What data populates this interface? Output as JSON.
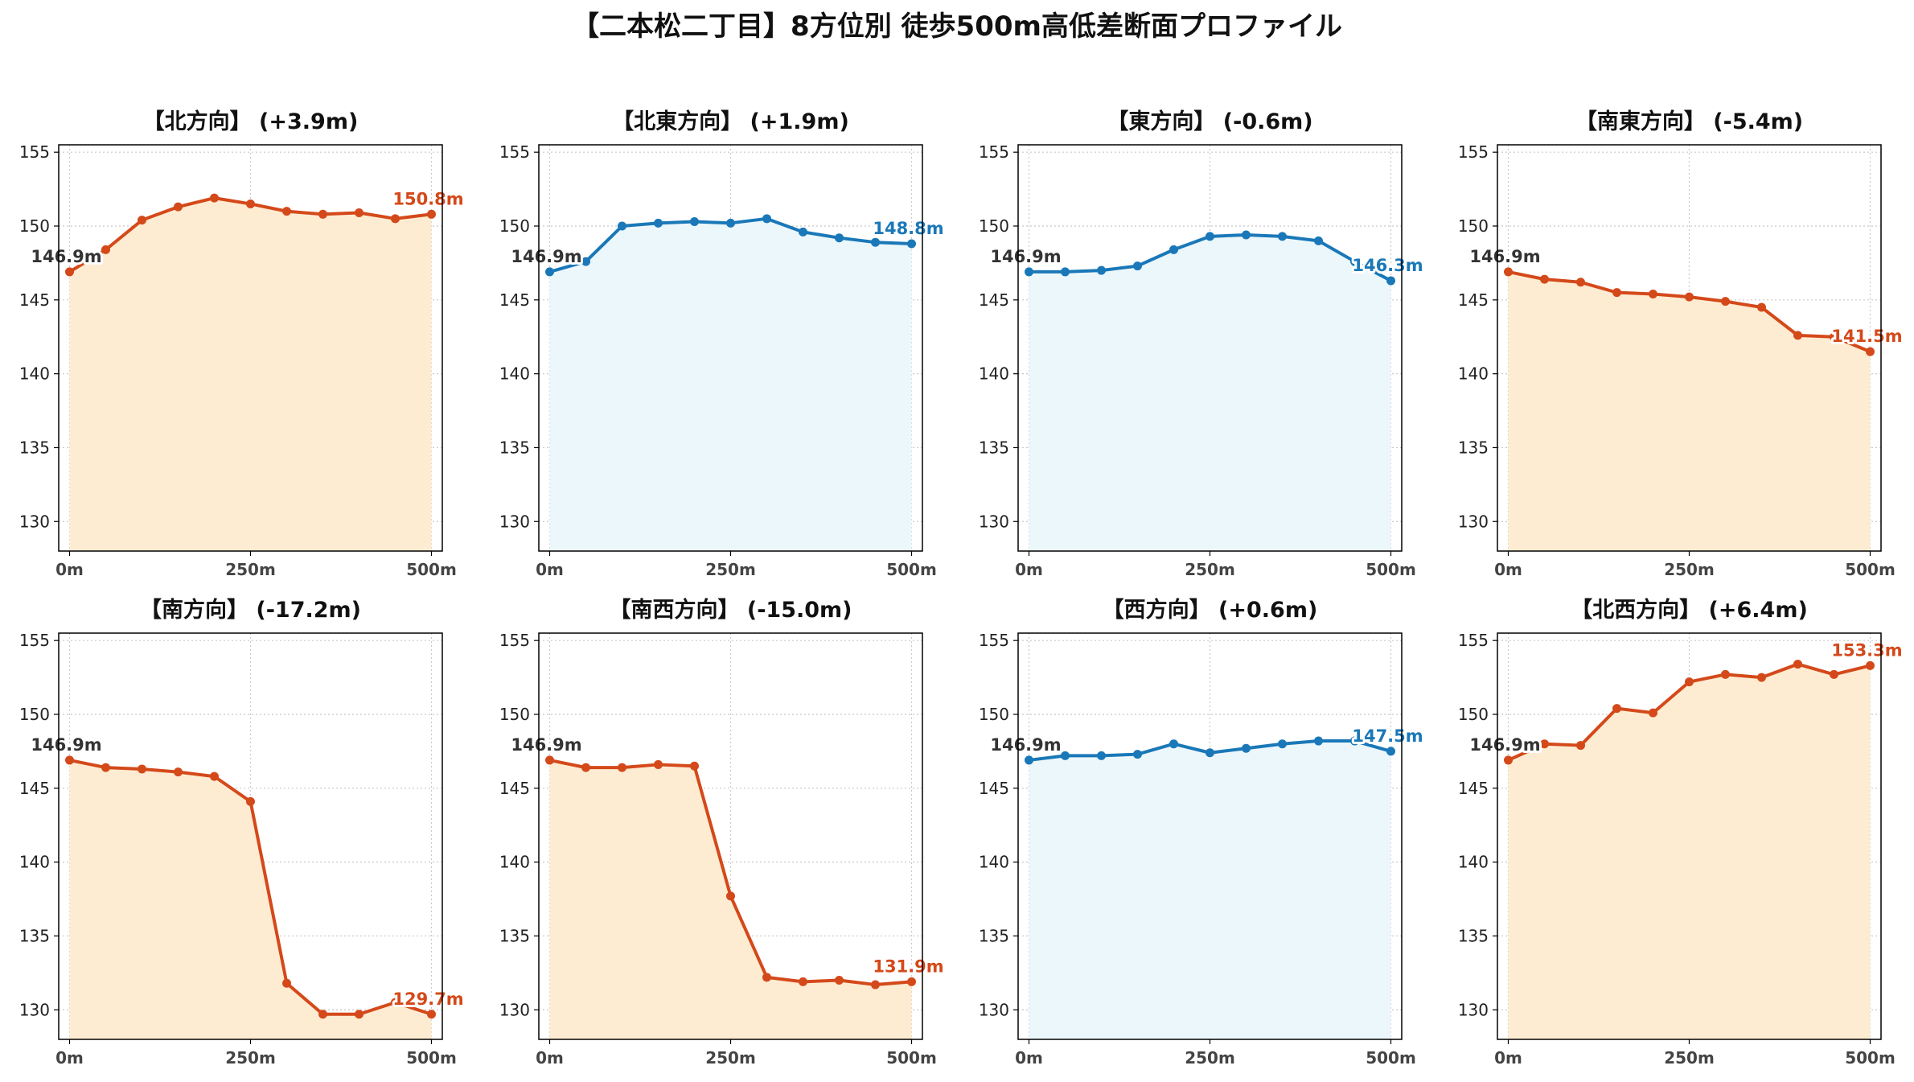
{
  "title": "【二本松二丁目】8方位別 徒歩500m高低差断面プロファイル",
  "colors": {
    "up_line": "#d4491a",
    "up_fill": "#feecd2",
    "flat_line": "#1a78b8",
    "flat_fill": "#ecf7fc"
  },
  "chart_data": [
    {
      "type": "area",
      "title": "【北方向】 (+3.9m)",
      "style": "up",
      "x": [
        0,
        50,
        100,
        150,
        200,
        250,
        300,
        350,
        400,
        450,
        500
      ],
      "values": [
        146.9,
        148.4,
        150.4,
        151.3,
        151.9,
        151.5,
        151.0,
        150.8,
        150.9,
        150.5,
        150.8
      ],
      "start_label": "146.9m",
      "end_label": "150.8m",
      "xticks": [
        0,
        250,
        500
      ],
      "xtick_labels": [
        "0m",
        "250m",
        "500m"
      ],
      "yticks": [
        130,
        135,
        140,
        145,
        150,
        155
      ],
      "ylim": [
        128,
        155.5
      ],
      "xlim": [
        -15,
        515
      ],
      "grid": true
    },
    {
      "type": "area",
      "title": "【北東方向】 (+1.9m)",
      "style": "flat",
      "x": [
        0,
        50,
        100,
        150,
        200,
        250,
        300,
        350,
        400,
        450,
        500
      ],
      "values": [
        146.9,
        147.6,
        150.0,
        150.2,
        150.3,
        150.2,
        150.5,
        149.6,
        149.2,
        148.9,
        148.8
      ],
      "start_label": "146.9m",
      "end_label": "148.8m",
      "xticks": [
        0,
        250,
        500
      ],
      "xtick_labels": [
        "0m",
        "250m",
        "500m"
      ],
      "yticks": [
        130,
        135,
        140,
        145,
        150,
        155
      ],
      "ylim": [
        128,
        155.5
      ],
      "xlim": [
        -15,
        515
      ],
      "grid": true
    },
    {
      "type": "area",
      "title": "【東方向】 (-0.6m)",
      "style": "flat",
      "x": [
        0,
        50,
        100,
        150,
        200,
        250,
        300,
        350,
        400,
        450,
        500
      ],
      "values": [
        146.9,
        146.9,
        147.0,
        147.3,
        148.4,
        149.3,
        149.4,
        149.3,
        149.0,
        147.6,
        146.3
      ],
      "start_label": "146.9m",
      "end_label": "146.3m",
      "xticks": [
        0,
        250,
        500
      ],
      "xtick_labels": [
        "0m",
        "250m",
        "500m"
      ],
      "yticks": [
        130,
        135,
        140,
        145,
        150,
        155
      ],
      "ylim": [
        128,
        155.5
      ],
      "xlim": [
        -15,
        515
      ],
      "grid": true
    },
    {
      "type": "area",
      "title": "【南東方向】 (-5.4m)",
      "style": "up",
      "x": [
        0,
        50,
        100,
        150,
        200,
        250,
        300,
        350,
        400,
        450,
        500
      ],
      "values": [
        146.9,
        146.4,
        146.2,
        145.5,
        145.4,
        145.2,
        144.9,
        144.5,
        142.6,
        142.5,
        141.5
      ],
      "start_label": "146.9m",
      "end_label": "141.5m",
      "xticks": [
        0,
        250,
        500
      ],
      "xtick_labels": [
        "0m",
        "250m",
        "500m"
      ],
      "yticks": [
        130,
        135,
        140,
        145,
        150,
        155
      ],
      "ylim": [
        128,
        155.5
      ],
      "xlim": [
        -15,
        515
      ],
      "grid": true
    },
    {
      "type": "area",
      "title": "【南方向】 (-17.2m)",
      "style": "up",
      "x": [
        0,
        50,
        100,
        150,
        200,
        250,
        300,
        350,
        400,
        450,
        500
      ],
      "values": [
        146.9,
        146.4,
        146.3,
        146.1,
        145.8,
        144.1,
        131.8,
        129.7,
        129.7,
        130.5,
        129.7
      ],
      "start_label": "146.9m",
      "end_label": "129.7m",
      "xticks": [
        0,
        250,
        500
      ],
      "xtick_labels": [
        "0m",
        "250m",
        "500m"
      ],
      "yticks": [
        130,
        135,
        140,
        145,
        150,
        155
      ],
      "ylim": [
        128,
        155.5
      ],
      "xlim": [
        -15,
        515
      ],
      "grid": true
    },
    {
      "type": "area",
      "title": "【南西方向】 (-15.0m)",
      "style": "up",
      "x": [
        0,
        50,
        100,
        150,
        200,
        250,
        300,
        350,
        400,
        450,
        500
      ],
      "values": [
        146.9,
        146.4,
        146.4,
        146.6,
        146.5,
        137.7,
        132.2,
        131.9,
        132.0,
        131.7,
        131.9
      ],
      "start_label": "146.9m",
      "end_label": "131.9m",
      "xticks": [
        0,
        250,
        500
      ],
      "xtick_labels": [
        "0m",
        "250m",
        "500m"
      ],
      "yticks": [
        130,
        135,
        140,
        145,
        150,
        155
      ],
      "ylim": [
        128,
        155.5
      ],
      "xlim": [
        -15,
        515
      ],
      "grid": true
    },
    {
      "type": "area",
      "title": "【西方向】 (+0.6m)",
      "style": "flat",
      "x": [
        0,
        50,
        100,
        150,
        200,
        250,
        300,
        350,
        400,
        450,
        500
      ],
      "values": [
        146.9,
        147.2,
        147.2,
        147.3,
        148.0,
        147.4,
        147.7,
        148.0,
        148.2,
        148.2,
        147.5
      ],
      "start_label": "146.9m",
      "end_label": "147.5m",
      "xticks": [
        0,
        250,
        500
      ],
      "xtick_labels": [
        "0m",
        "250m",
        "500m"
      ],
      "yticks": [
        130,
        135,
        140,
        145,
        150,
        155
      ],
      "ylim": [
        128,
        155.5
      ],
      "xlim": [
        -15,
        515
      ],
      "grid": true
    },
    {
      "type": "area",
      "title": "【北西方向】 (+6.4m)",
      "style": "up",
      "x": [
        0,
        50,
        100,
        150,
        200,
        250,
        300,
        350,
        400,
        450,
        500
      ],
      "values": [
        146.9,
        148.0,
        147.9,
        150.4,
        150.1,
        152.2,
        152.7,
        152.5,
        153.4,
        152.7,
        153.3
      ],
      "start_label": "146.9m",
      "end_label": "153.3m",
      "xticks": [
        0,
        250,
        500
      ],
      "xtick_labels": [
        "0m",
        "250m",
        "500m"
      ],
      "yticks": [
        130,
        135,
        140,
        145,
        150,
        155
      ],
      "ylim": [
        128,
        155.5
      ],
      "xlim": [
        -15,
        515
      ],
      "grid": true
    }
  ]
}
